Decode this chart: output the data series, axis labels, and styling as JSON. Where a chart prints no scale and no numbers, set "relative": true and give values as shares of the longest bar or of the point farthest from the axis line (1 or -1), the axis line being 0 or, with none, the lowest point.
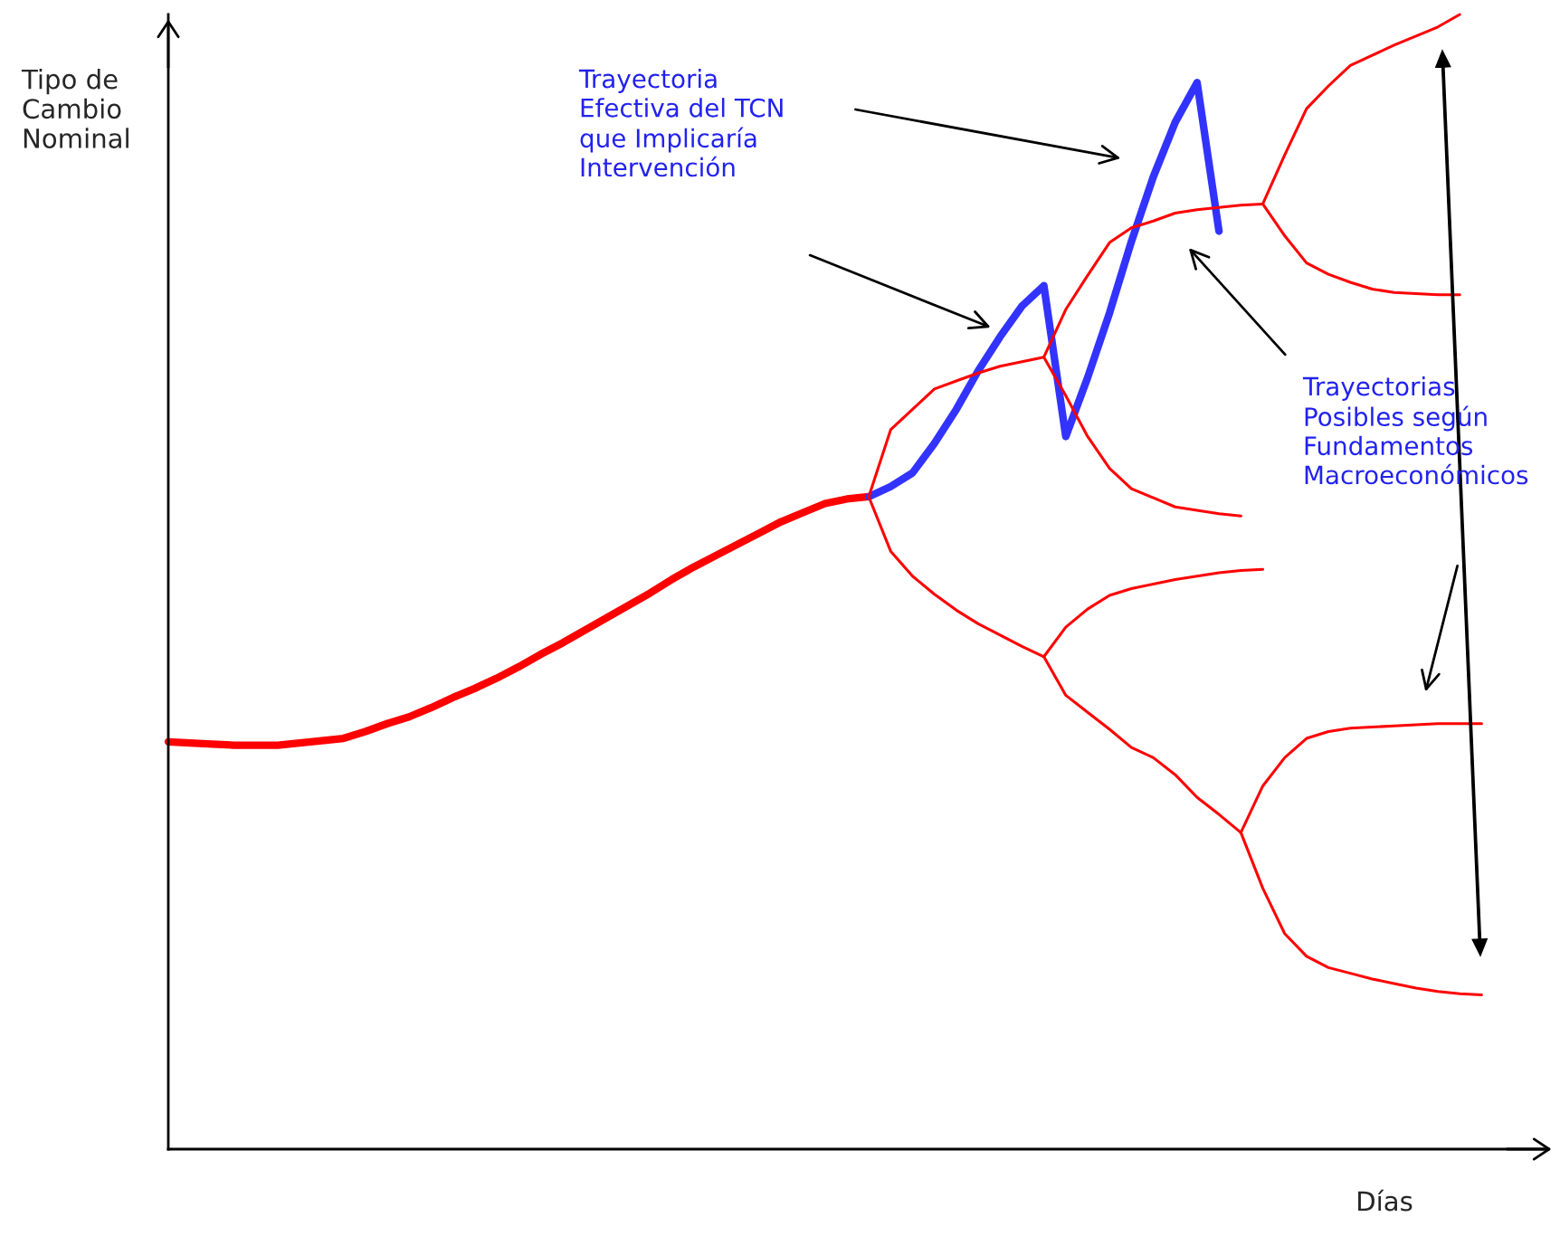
{
  "chart_data": {
    "type": "line",
    "relative": true,
    "legend": false,
    "xlabel": "Días",
    "ylabel": "Tipo de\nCambio\nNominal",
    "annotations": [
      "Trayectoria\nEfectiva del TCN\nque Implicaría\nIntervención",
      "Trayectorias\nPosibles según\nFundamentos\nMacroeconómicos"
    ],
    "categories": [
      null,
      null,
      null,
      null,
      null,
      null,
      null,
      null,
      null,
      null,
      null,
      null,
      null,
      null,
      null,
      null,
      null,
      null,
      null,
      null,
      null,
      null,
      null,
      null,
      null,
      null,
      null,
      null,
      null,
      null,
      null,
      null,
      null,
      null,
      null,
      null,
      null,
      null,
      null,
      null,
      null,
      null,
      null,
      null,
      null,
      null,
      null,
      null,
      null,
      null,
      null,
      null,
      null,
      null,
      null,
      null,
      null,
      null,
      null,
      null,
      null,
      null,
      null,
      null
    ],
    "series": [
      {
        "color": "#ff0000",
        "values": [
          0.359,
          0.358,
          0.357,
          0.356,
          0.356,
          0.356,
          0.358,
          0.36,
          0.362,
          0.368,
          0.375,
          0.381,
          0.389,
          0.398,
          0.406,
          0.415,
          0.425,
          0.436,
          0.446,
          0.457,
          0.468,
          0.479,
          0.49,
          0.502,
          0.513,
          0.523,
          0.533,
          0.543,
          0.553,
          0.561,
          0.569,
          0.573,
          0.575,
          null,
          null,
          null,
          null,
          null,
          null,
          null,
          null,
          null,
          null,
          null,
          null,
          null,
          null,
          null,
          null,
          null,
          null,
          null,
          null,
          null,
          null,
          null,
          null,
          null,
          null,
          null,
          null,
          null,
          null,
          null
        ]
      },
      {
        "color": "#3333ff",
        "values": [
          null,
          null,
          null,
          null,
          null,
          null,
          null,
          null,
          null,
          null,
          null,
          null,
          null,
          null,
          null,
          null,
          null,
          null,
          null,
          null,
          null,
          null,
          null,
          null,
          null,
          null,
          null,
          null,
          null,
          null,
          null,
          null,
          0.575,
          0.584,
          0.596,
          0.622,
          0.652,
          0.686,
          0.716,
          0.743,
          0.761,
          0.628,
          0.68,
          0.737,
          0.8,
          0.857,
          0.905,
          0.94,
          0.809,
          null,
          null,
          null,
          null,
          null,
          null,
          null,
          null,
          null,
          null,
          null,
          null,
          null,
          null,
          null
        ]
      },
      {
        "color": "#ff0000",
        "values": [
          null,
          null,
          null,
          null,
          null,
          null,
          null,
          null,
          null,
          null,
          null,
          null,
          null,
          null,
          null,
          null,
          null,
          null,
          null,
          null,
          null,
          null,
          null,
          null,
          null,
          null,
          null,
          null,
          null,
          null,
          null,
          null,
          0.575,
          0.634,
          0.652,
          0.67,
          0.677,
          0.684,
          0.69,
          0.694,
          0.698,
          null,
          null,
          null,
          null,
          null,
          null,
          null,
          null,
          null,
          null,
          null,
          null,
          null,
          null,
          null,
          null,
          null,
          null,
          null,
          null,
          null,
          null,
          null
        ]
      },
      {
        "color": "#ff0000",
        "values": [
          null,
          null,
          null,
          null,
          null,
          null,
          null,
          null,
          null,
          null,
          null,
          null,
          null,
          null,
          null,
          null,
          null,
          null,
          null,
          null,
          null,
          null,
          null,
          null,
          null,
          null,
          null,
          null,
          null,
          null,
          null,
          null,
          null,
          null,
          null,
          null,
          null,
          null,
          null,
          null,
          0.698,
          0.74,
          0.77,
          0.799,
          0.812,
          0.818,
          0.825,
          0.828,
          0.83,
          0.832,
          0.833,
          null,
          null,
          null,
          null,
          null,
          null,
          null,
          null,
          null,
          null,
          null,
          null,
          null
        ]
      },
      {
        "color": "#ff0000",
        "values": [
          null,
          null,
          null,
          null,
          null,
          null,
          null,
          null,
          null,
          null,
          null,
          null,
          null,
          null,
          null,
          null,
          null,
          null,
          null,
          null,
          null,
          null,
          null,
          null,
          null,
          null,
          null,
          null,
          null,
          null,
          null,
          null,
          null,
          null,
          null,
          null,
          null,
          null,
          null,
          null,
          0.698,
          0.664,
          0.628,
          0.6,
          0.582,
          0.574,
          0.566,
          0.563,
          0.56,
          0.558,
          null,
          null,
          null,
          null,
          null,
          null,
          null,
          null,
          null,
          null,
          null,
          null,
          null,
          null
        ]
      },
      {
        "color": "#ff0000",
        "values": [
          null,
          null,
          null,
          null,
          null,
          null,
          null,
          null,
          null,
          null,
          null,
          null,
          null,
          null,
          null,
          null,
          null,
          null,
          null,
          null,
          null,
          null,
          null,
          null,
          null,
          null,
          null,
          null,
          null,
          null,
          null,
          null,
          null,
          null,
          null,
          null,
          null,
          null,
          null,
          null,
          null,
          null,
          null,
          null,
          null,
          null,
          null,
          null,
          null,
          null,
          0.833,
          0.876,
          0.917,
          0.937,
          0.955,
          0.964,
          0.973,
          0.981,
          0.989,
          1,
          null,
          null,
          null,
          null
        ]
      },
      {
        "color": "#ff0000",
        "values": [
          null,
          null,
          null,
          null,
          null,
          null,
          null,
          null,
          null,
          null,
          null,
          null,
          null,
          null,
          null,
          null,
          null,
          null,
          null,
          null,
          null,
          null,
          null,
          null,
          null,
          null,
          null,
          null,
          null,
          null,
          null,
          null,
          null,
          null,
          null,
          null,
          null,
          null,
          null,
          null,
          null,
          null,
          null,
          null,
          null,
          null,
          null,
          null,
          null,
          null,
          0.833,
          0.805,
          0.781,
          0.771,
          0.764,
          0.758,
          0.755,
          0.754,
          0.753,
          0.753,
          null,
          null,
          null,
          null
        ]
      },
      {
        "color": "#ff0000",
        "values": [
          null,
          null,
          null,
          null,
          null,
          null,
          null,
          null,
          null,
          null,
          null,
          null,
          null,
          null,
          null,
          null,
          null,
          null,
          null,
          null,
          null,
          null,
          null,
          null,
          null,
          null,
          null,
          null,
          null,
          null,
          null,
          null,
          0.575,
          0.527,
          0.505,
          0.489,
          0.475,
          0.463,
          0.453,
          0.443,
          0.434,
          null,
          null,
          null,
          null,
          null,
          null,
          null,
          null,
          null,
          null,
          null,
          null,
          null,
          null,
          null,
          null,
          null,
          null,
          null,
          null,
          null,
          null,
          null
        ]
      },
      {
        "color": "#ff0000",
        "values": [
          null,
          null,
          null,
          null,
          null,
          null,
          null,
          null,
          null,
          null,
          null,
          null,
          null,
          null,
          null,
          null,
          null,
          null,
          null,
          null,
          null,
          null,
          null,
          null,
          null,
          null,
          null,
          null,
          null,
          null,
          null,
          null,
          null,
          null,
          null,
          null,
          null,
          null,
          null,
          null,
          0.434,
          0.46,
          0.476,
          0.488,
          0.494,
          0.498,
          0.502,
          0.505,
          0.508,
          0.51,
          0.511,
          null,
          null,
          null,
          null,
          null,
          null,
          null,
          null,
          null,
          null,
          null,
          null,
          null
        ]
      },
      {
        "color": "#ff0000",
        "values": [
          null,
          null,
          null,
          null,
          null,
          null,
          null,
          null,
          null,
          null,
          null,
          null,
          null,
          null,
          null,
          null,
          null,
          null,
          null,
          null,
          null,
          null,
          null,
          null,
          null,
          null,
          null,
          null,
          null,
          null,
          null,
          null,
          null,
          null,
          null,
          null,
          null,
          null,
          null,
          null,
          0.434,
          0.4,
          0.385,
          0.37,
          0.354,
          0.345,
          0.33,
          0.31,
          0.295,
          0.279,
          null,
          null,
          null,
          null,
          null,
          null,
          null,
          null,
          null,
          null,
          null,
          null,
          null,
          null
        ]
      },
      {
        "color": "#ff0000",
        "values": [
          null,
          null,
          null,
          null,
          null,
          null,
          null,
          null,
          null,
          null,
          null,
          null,
          null,
          null,
          null,
          null,
          null,
          null,
          null,
          null,
          null,
          null,
          null,
          null,
          null,
          null,
          null,
          null,
          null,
          null,
          null,
          null,
          null,
          null,
          null,
          null,
          null,
          null,
          null,
          null,
          null,
          null,
          null,
          null,
          null,
          null,
          null,
          null,
          null,
          0.279,
          0.32,
          0.345,
          0.362,
          0.368,
          0.371,
          0.372,
          0.373,
          0.374,
          0.375,
          0.375,
          0.375,
          null,
          null,
          null
        ]
      },
      {
        "color": "#ff0000",
        "values": [
          null,
          null,
          null,
          null,
          null,
          null,
          null,
          null,
          null,
          null,
          null,
          null,
          null,
          null,
          null,
          null,
          null,
          null,
          null,
          null,
          null,
          null,
          null,
          null,
          null,
          null,
          null,
          null,
          null,
          null,
          null,
          null,
          null,
          null,
          null,
          null,
          null,
          null,
          null,
          null,
          null,
          null,
          null,
          null,
          null,
          null,
          null,
          null,
          null,
          0.279,
          0.23,
          0.19,
          0.17,
          0.16,
          0.155,
          0.15,
          0.146,
          0.142,
          0.139,
          0.137,
          0.136,
          null,
          null,
          null
        ]
      }
    ]
  }
}
